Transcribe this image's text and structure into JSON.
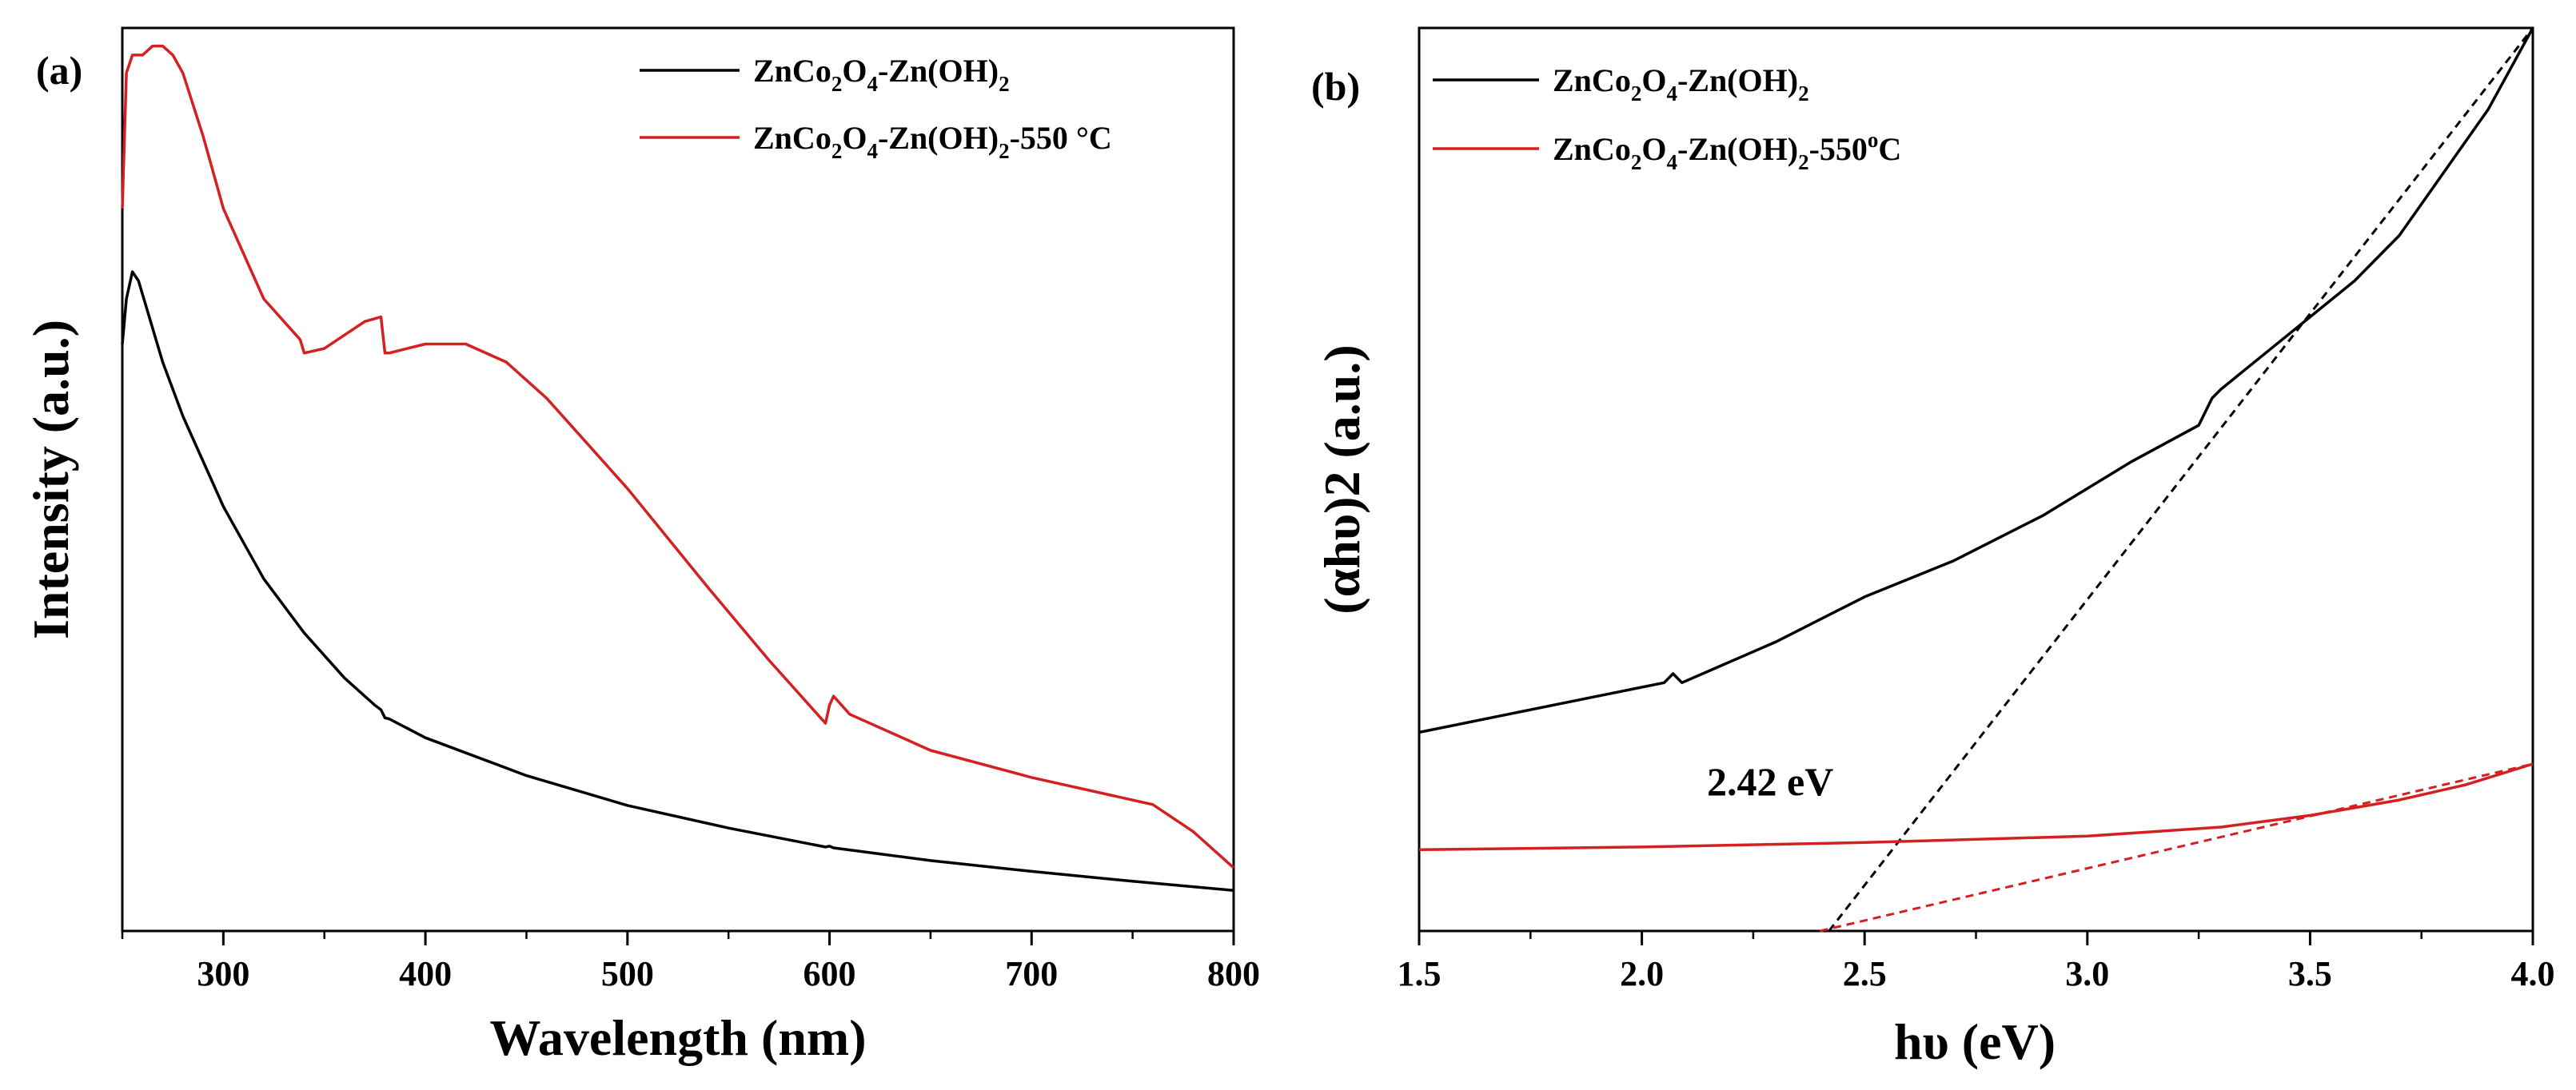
{
  "chart_data": [
    {
      "type": "line",
      "panel_label": "(a)",
      "xlabel": "Wavelength (nm)",
      "ylabel": "Intensity (a.u.)",
      "xlim": [
        250,
        800
      ],
      "ylim": [
        0,
        1
      ],
      "xticks": [
        300,
        400,
        500,
        600,
        700,
        800
      ],
      "x_minor_ticks": [
        250,
        350,
        450,
        550,
        650,
        750
      ],
      "y_ticks_labeled": false,
      "legend_position": "top-right",
      "series": [
        {
          "name": "ZnCo2O4-Zn(OH)2",
          "legend_label": {
            "a": "ZnCo",
            "s1": "2",
            "b": "O",
            "s2": "4",
            "c": "-Zn(OH)",
            "s3": "2",
            "d": ""
          },
          "color": "#000000",
          "x": [
            250,
            252,
            255,
            258,
            262,
            270,
            280,
            300,
            320,
            340,
            360,
            375,
            378,
            380,
            382,
            400,
            450,
            500,
            550,
            598,
            600,
            602,
            650,
            700,
            750,
            800
          ],
          "y": [
            0.65,
            0.7,
            0.73,
            0.72,
            0.69,
            0.63,
            0.57,
            0.47,
            0.39,
            0.33,
            0.28,
            0.25,
            0.245,
            0.236,
            0.235,
            0.214,
            0.172,
            0.139,
            0.114,
            0.093,
            0.094,
            0.092,
            0.078,
            0.066,
            0.055,
            0.045
          ]
        },
        {
          "name": "ZnCo2O4-Zn(OH)2-550 °C",
          "legend_label": {
            "a": "ZnCo",
            "s1": "2",
            "b": "O",
            "s2": "4",
            "c": "-Zn(OH)",
            "s3": "2",
            "d": "-550 °C"
          },
          "color": "#d42020",
          "x": [
            250,
            252,
            255,
            260,
            265,
            270,
            275,
            280,
            290,
            300,
            320,
            338,
            340,
            350,
            360,
            370,
            378,
            380,
            382,
            400,
            420,
            440,
            460,
            500,
            540,
            570,
            598,
            600,
            602,
            610,
            650,
            700,
            740,
            760,
            780,
            800
          ],
          "y": [
            0.8,
            0.95,
            0.97,
            0.97,
            0.98,
            0.98,
            0.97,
            0.95,
            0.88,
            0.8,
            0.7,
            0.655,
            0.64,
            0.645,
            0.66,
            0.675,
            0.68,
            0.64,
            0.64,
            0.65,
            0.65,
            0.63,
            0.59,
            0.49,
            0.38,
            0.3,
            0.23,
            0.25,
            0.26,
            0.24,
            0.2,
            0.17,
            0.15,
            0.14,
            0.11,
            0.07
          ]
        }
      ]
    },
    {
      "type": "line",
      "panel_label": "(b)",
      "xlabel": "hυ (eV)",
      "ylabel": "(αhυ)2 (a.u.)",
      "xlim": [
        1.5,
        4.0
      ],
      "ylim": [
        0,
        1
      ],
      "xticks": [
        "1.5",
        "2.0",
        "2.5",
        "3.0",
        "3.5",
        "4.0"
      ],
      "x_minor_ticks": [
        1.75,
        2.25,
        2.75,
        3.25,
        3.75
      ],
      "y_ticks_labeled": false,
      "legend_position": "top-left",
      "annotation": "2.42 eV",
      "series": [
        {
          "name": "ZnCo2O4-Zn(OH)2",
          "legend_label": {
            "a": "ZnCo",
            "s1": "2",
            "b": "O",
            "s2": "4",
            "c": "-Zn(OH)",
            "s3": "2",
            "d": ""
          },
          "color": "#000000",
          "x": [
            1.5,
            1.7,
            1.9,
            2.05,
            2.07,
            2.09,
            2.3,
            2.5,
            2.7,
            2.9,
            3.1,
            3.25,
            3.28,
            3.3,
            3.4,
            3.5,
            3.6,
            3.7,
            3.8,
            3.9,
            4.0
          ],
          "y": [
            0.22,
            0.24,
            0.26,
            0.275,
            0.285,
            0.275,
            0.32,
            0.37,
            0.41,
            0.46,
            0.52,
            0.56,
            0.59,
            0.6,
            0.64,
            0.68,
            0.72,
            0.77,
            0.84,
            0.91,
            1.0
          ]
        },
        {
          "name": "ZnCo2O4-Zn(OH)2-550oC",
          "legend_label": {
            "a": "ZnCo",
            "s1": "2",
            "b": "O",
            "s2": "4",
            "c": "-Zn(OH)",
            "s3": "2",
            "d": "-550",
            "sup": "o",
            "e": "C"
          },
          "color": "#d42020",
          "x": [
            1.5,
            2.0,
            2.5,
            3.0,
            3.3,
            3.5,
            3.7,
            3.85,
            4.0
          ],
          "y": [
            0.09,
            0.093,
            0.098,
            0.105,
            0.115,
            0.128,
            0.145,
            0.162,
            0.185
          ]
        }
      ],
      "fit_lines": [
        {
          "name": "tangent-black",
          "color": "#000000",
          "x": [
            2.42,
            4.0
          ],
          "y": [
            0.0,
            1.0
          ]
        },
        {
          "name": "tangent-red",
          "color": "#d42020",
          "x": [
            2.4,
            4.0
          ],
          "y": [
            0.0,
            0.185
          ]
        }
      ]
    }
  ]
}
